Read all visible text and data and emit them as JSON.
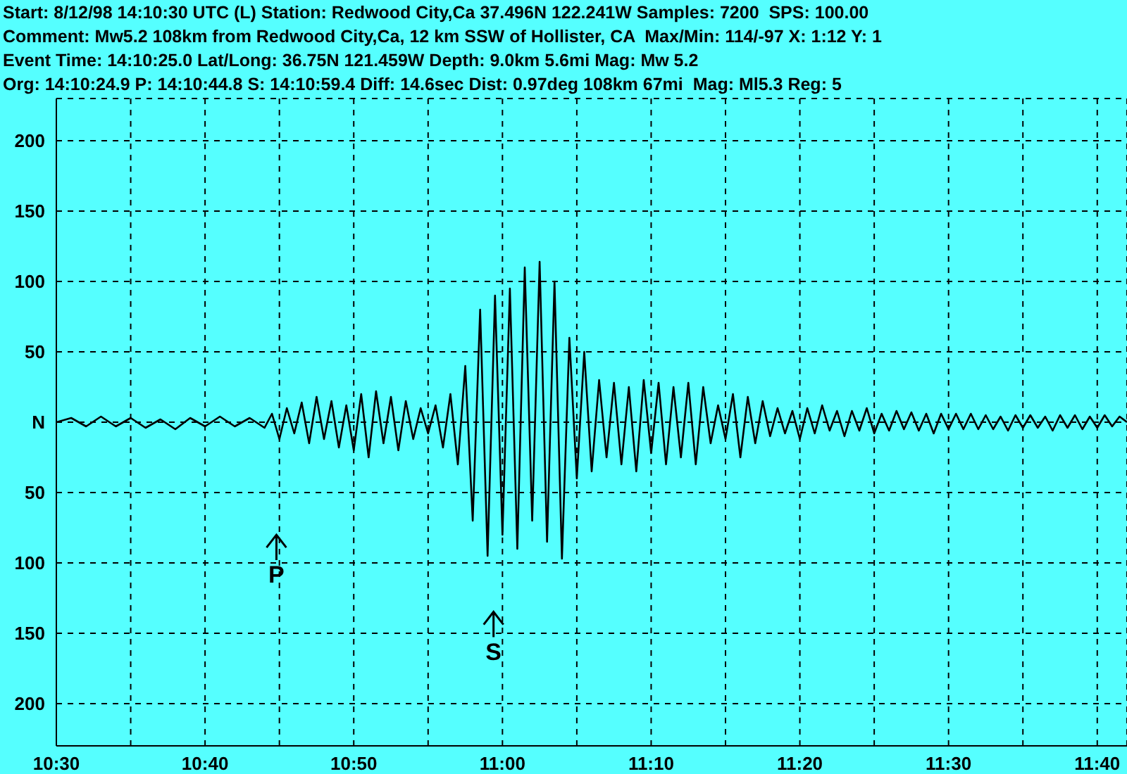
{
  "chart_data": {
    "type": "line",
    "title": "Start: 8/12/98 14:10:30 UTC (L) Station: Redwood City,Ca 37.496N 122.241W Samples: 7200  SPS: 100.00",
    "subtitle": "Comment: Mw5.2 108km from Redwood City,Ca, 12 km SSW of Hollister, CA  Max/Min: 114/-97 X: 1:12 Y: 1",
    "annotations": [
      "Event Time: 14:10:25.0 Lat/Long: 36.75N 121.459W Depth: 9.0km 5.6mi Mag: Mw 5.2",
      "Org: 14:10:24.9 P: 14:10:44.8 S: 14:10:59.4 Diff: 14.6sec Dist: 0.97deg 108km 67mi  Mag: Ml5.3 Reg: 5"
    ],
    "ref_lines": [
      {
        "axis": "x",
        "value": 644.8,
        "label": "P"
      },
      {
        "axis": "x",
        "value": 659.4,
        "label": "S"
      }
    ],
    "x": [
      630,
      631,
      632,
      633,
      634,
      635,
      636,
      637,
      638,
      639,
      640,
      641,
      642,
      643,
      644,
      644.5,
      645,
      645.5,
      646,
      646.5,
      647,
      647.5,
      648,
      648.5,
      649,
      649.5,
      650,
      650.5,
      651,
      651.5,
      652,
      652.5,
      653,
      653.5,
      654,
      654.5,
      655,
      655.5,
      656,
      656.5,
      657,
      657.5,
      658,
      658.5,
      659,
      659.5,
      660,
      660.5,
      661,
      661.5,
      662,
      662.5,
      663,
      663.5,
      664,
      664.5,
      665,
      665.5,
      666,
      666.5,
      667,
      667.5,
      668,
      668.5,
      669,
      669.5,
      670,
      670.5,
      671,
      671.5,
      672,
      672.5,
      673,
      673.5,
      674,
      674.5,
      675,
      675.5,
      676,
      676.5,
      677,
      677.5,
      678,
      678.5,
      679,
      679.5,
      680,
      680.5,
      681,
      681.5,
      682,
      682.5,
      683,
      683.5,
      684,
      684.5,
      685,
      685.5,
      686,
      686.5,
      687,
      687.5,
      688,
      688.5,
      689,
      689.5,
      690,
      690.5,
      691,
      691.5,
      692,
      692.5,
      693,
      693.5,
      694,
      694.5,
      695,
      695.5,
      696,
      696.5,
      697,
      697.5,
      698,
      698.5,
      699,
      699.5,
      700,
      700.5,
      701,
      701.5,
      702
    ],
    "series": [
      {
        "color": "#000000",
        "values": [
          0,
          3,
          -3,
          4,
          -3,
          3,
          -4,
          2,
          -5,
          3,
          -3,
          4,
          -3,
          3,
          -4,
          6,
          -12,
          10,
          -8,
          14,
          -15,
          18,
          -12,
          15,
          -18,
          12,
          -20,
          20,
          -25,
          22,
          -15,
          18,
          -20,
          15,
          -12,
          10,
          -8,
          12,
          -18,
          20,
          -30,
          40,
          -70,
          80,
          -95,
          90,
          -80,
          95,
          -90,
          110,
          -70,
          114,
          -85,
          100,
          -97,
          60,
          -40,
          50,
          -35,
          30,
          -25,
          28,
          -30,
          25,
          -35,
          30,
          -22,
          28,
          -30,
          25,
          -25,
          28,
          -30,
          25,
          -15,
          12,
          -12,
          20,
          -25,
          18,
          -15,
          15,
          -10,
          10,
          -8,
          8,
          -12,
          10,
          -8,
          12,
          -6,
          8,
          -10,
          8,
          -6,
          10,
          -8,
          6,
          -6,
          8,
          -5,
          7,
          -6,
          6,
          -8,
          6,
          -5,
          6,
          -5,
          6,
          -5,
          5,
          -5,
          4,
          -6,
          5,
          -4,
          5,
          -4,
          4,
          -6,
          5,
          -4,
          5,
          -5,
          4,
          -4,
          5,
          -3,
          4,
          0
        ]
      }
    ],
    "xlim": [
      630,
      702
    ],
    "xticks": [
      {
        "value": 630,
        "label": "10:30"
      },
      {
        "value": 635,
        "label": null
      },
      {
        "value": 640,
        "label": "10:40"
      },
      {
        "value": 645,
        "label": null
      },
      {
        "value": 650,
        "label": "10:50"
      },
      {
        "value": 655,
        "label": null
      },
      {
        "value": 660,
        "label": "11:00"
      },
      {
        "value": 665,
        "label": null
      },
      {
        "value": 670,
        "label": "11:10"
      },
      {
        "value": 675,
        "label": null
      },
      {
        "value": 680,
        "label": "11:20"
      },
      {
        "value": 685,
        "label": null
      },
      {
        "value": 690,
        "label": "11:30"
      },
      {
        "value": 695,
        "label": null
      },
      {
        "value": 700,
        "label": "11:40"
      }
    ],
    "ylim": [
      -230,
      230
    ],
    "yticks": [
      {
        "value": -200,
        "label": "200"
      },
      {
        "value": -150,
        "label": "150"
      },
      {
        "value": -100,
        "label": "100"
      },
      {
        "value": -50,
        "label": "50"
      },
      {
        "value": 0,
        "label": "N"
      },
      {
        "value": 50,
        "label": "50"
      },
      {
        "value": 100,
        "label": "100"
      },
      {
        "value": 150,
        "label": "150"
      },
      {
        "value": 200,
        "label": "200"
      }
    ],
    "grid": true,
    "marker": "none",
    "line_style": "solid"
  }
}
